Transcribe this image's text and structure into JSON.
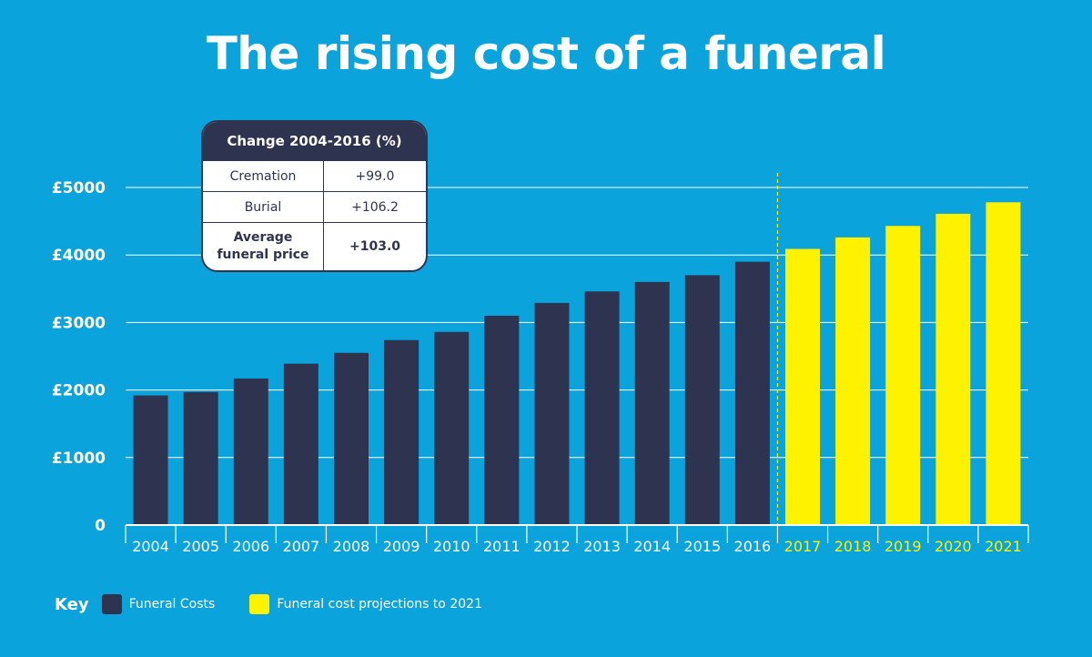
{
  "title": "The rising cost of a funeral",
  "change_table": {
    "header": "Change 2004-2016 (%)",
    "rows": [
      {
        "label": "Cremation",
        "value": "+99.0"
      },
      {
        "label": "Burial",
        "value": "+106.2"
      },
      {
        "label_line1": "Average",
        "label_line2": "funeral price",
        "value": "+103.0"
      }
    ]
  },
  "key": {
    "label": "Key",
    "items": [
      {
        "label": "Funeral Costs",
        "color": "#2e3350"
      },
      {
        "label": "Funeral cost projections to 2021",
        "color": "#fff200"
      }
    ]
  },
  "chart_data": {
    "type": "bar",
    "title": "The rising cost of a funeral",
    "categories": [
      "2004",
      "2005",
      "2006",
      "2007",
      "2008",
      "2009",
      "2010",
      "2011",
      "2012",
      "2013",
      "2014",
      "2015",
      "2016",
      "2017",
      "2018",
      "2019",
      "2020",
      "2021"
    ],
    "series": [
      {
        "name": "Funeral Costs",
        "color": "#2e3350",
        "values": [
          1920,
          1970,
          2170,
          2390,
          2550,
          2740,
          2860,
          3100,
          3290,
          3460,
          3600,
          3700,
          3900,
          null,
          null,
          null,
          null,
          null
        ]
      },
      {
        "name": "Funeral cost projections to 2021",
        "color": "#fff200",
        "values": [
          null,
          null,
          null,
          null,
          null,
          null,
          null,
          null,
          null,
          null,
          null,
          null,
          null,
          4090,
          4260,
          4430,
          4610,
          4780
        ]
      }
    ],
    "ylim": [
      0,
      5000
    ],
    "yticks": [
      {
        "value": 0,
        "label": "0"
      },
      {
        "value": 1000,
        "label": "£1000"
      },
      {
        "value": 2000,
        "label": "£2000"
      },
      {
        "value": 3000,
        "label": "£3000"
      },
      {
        "value": 4000,
        "label": "£4000"
      },
      {
        "value": 5000,
        "label": "£5000"
      }
    ],
    "grid": true,
    "projection_start": "2017",
    "colors": {
      "axis": "#ffffff",
      "actual_label": "#ffffff",
      "projection_label": "#fff200",
      "divider": "#fff200"
    }
  }
}
